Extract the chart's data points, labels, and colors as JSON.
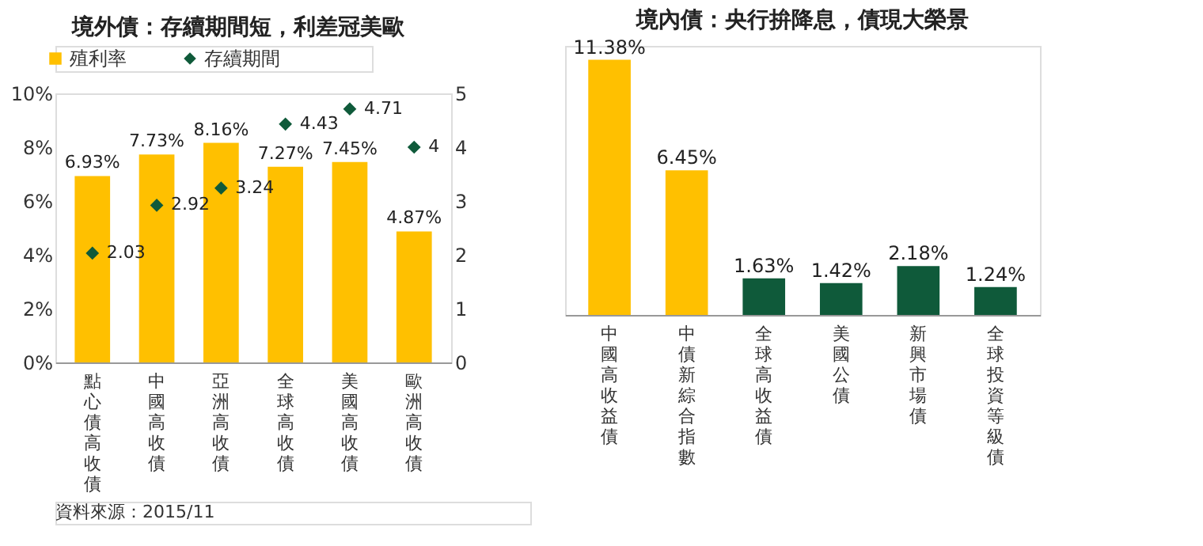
{
  "chart_data": [
    {
      "type": "bar",
      "title": "境外債：存續期間短，利差冠美歐",
      "categories": [
        "點心債高收債",
        "中國高收債",
        "亞洲高收債",
        "全球高收債",
        "美國高收債",
        "歐洲高收債"
      ],
      "series": [
        {
          "name": "殖利率",
          "type": "bar",
          "color": "#ffc000",
          "values": [
            6.93,
            7.73,
            8.16,
            7.27,
            7.45,
            4.87
          ],
          "value_labels": [
            "6.93%",
            "7.73%",
            "8.16%",
            "7.27%",
            "7.45%",
            "4.87%"
          ]
        },
        {
          "name": "存續期間",
          "type": "scatter",
          "axis": "y2",
          "marker": "diamond",
          "color": "#0f5a3a",
          "values": [
            2.03,
            2.92,
            3.24,
            4.43,
            4.71,
            4
          ],
          "value_labels": [
            "2.03",
            "2.92",
            "3.24",
            "4.43",
            "4.71",
            "4"
          ]
        }
      ],
      "ylim": [
        0,
        10
      ],
      "yticks": [
        {
          "value": 0,
          "label": "0%"
        },
        {
          "value": 2,
          "label": "2%"
        },
        {
          "value": 4,
          "label": "4%"
        },
        {
          "value": 6,
          "label": "6%"
        },
        {
          "value": 8,
          "label": "8%"
        },
        {
          "value": 10,
          "label": "10%"
        }
      ],
      "y2lim": [
        0,
        5
      ],
      "y2ticks": [
        0,
        1,
        2,
        3,
        4,
        5
      ],
      "legend": "top left",
      "grid": false,
      "annotations": [
        "資料來源：2015/11"
      ]
    },
    {
      "type": "bar",
      "title": "境內債：央行拚降息，債現大榮景",
      "categories": [
        "中國高收益債",
        "中債新綜合指數",
        "全球高收益債",
        "美國公債",
        "新興市場債",
        "全球投資等級債"
      ],
      "values": [
        11.38,
        6.45,
        1.63,
        1.42,
        2.18,
        1.24
      ],
      "colors": [
        "#ffc000",
        "#ffc000",
        "#0f5a3a",
        "#0f5a3a",
        "#0f5a3a",
        "#0f5a3a"
      ],
      "value_labels": [
        "11.38%",
        "6.45%",
        "1.63%",
        "1.42%",
        "2.18%",
        "1.24%"
      ],
      "tick_labels": "x"
    }
  ]
}
